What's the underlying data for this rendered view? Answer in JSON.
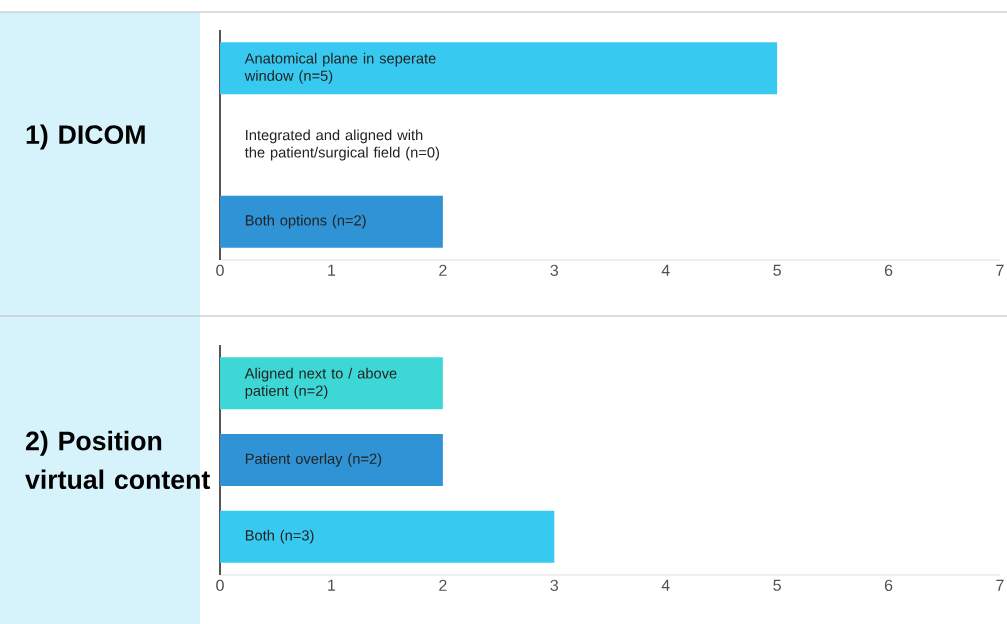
{
  "chart_data": [
    {
      "type": "bar",
      "orientation": "horizontal",
      "title": "1) DICOM",
      "categories": [
        "Anatomical plane in seperate window (n=5)",
        "Integrated and aligned with the patient/surgical field (n=0)",
        "Both options (n=2)"
      ],
      "values": [
        5,
        0,
        2
      ],
      "colors": [
        "#38c9f0",
        "#2f93d6",
        "#2f93d6"
      ],
      "xlim": [
        0,
        7
      ],
      "xticks": [
        0,
        1,
        2,
        3,
        4,
        5,
        6,
        7
      ]
    },
    {
      "type": "bar",
      "orientation": "horizontal",
      "title": "2) Position virtual content",
      "categories": [
        "Aligned next to / above patient (n=2)",
        "Patient overlay (n=2)",
        "Both (n=3)"
      ],
      "values": [
        2,
        2,
        3
      ],
      "colors": [
        "#3dd8d6",
        "#2f93d6",
        "#38c9f0"
      ],
      "xlim": [
        0,
        7
      ],
      "xticks": [
        0,
        1,
        2,
        3,
        4,
        5,
        6,
        7
      ]
    }
  ]
}
